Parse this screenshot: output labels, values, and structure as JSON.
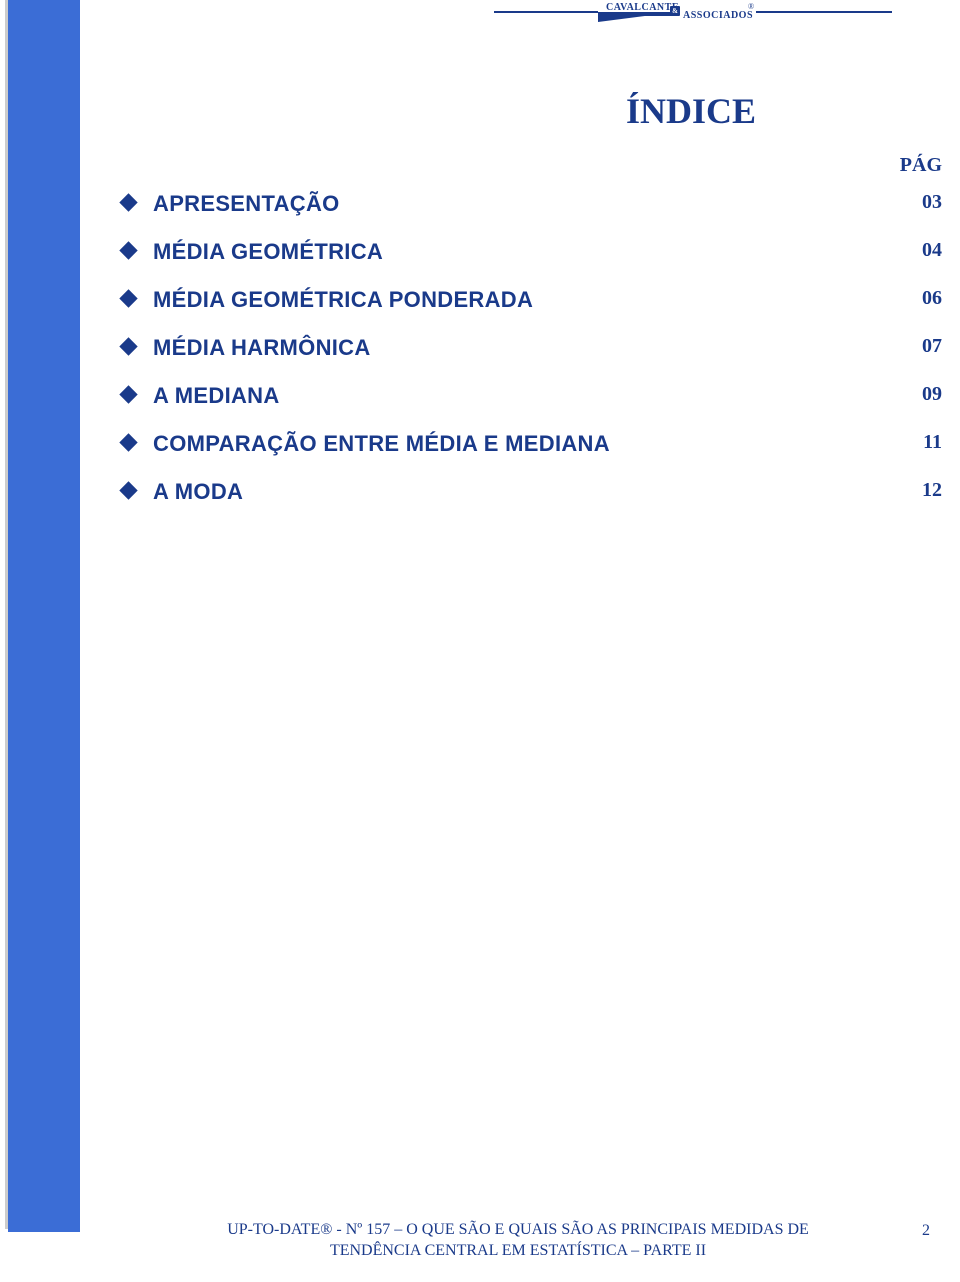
{
  "header": {
    "brand_line1": "CAVALCANTE",
    "brand_amp": "&",
    "brand_line2": "ASSOCIADOS",
    "reg_mark": "®"
  },
  "title": "ÍNDICE",
  "pag_label": "PÁG",
  "toc": [
    {
      "label": "APRESENTAÇÃO",
      "page": "03"
    },
    {
      "label": "MÉDIA GEOMÉTRICA",
      "page": "04"
    },
    {
      "label": "MÉDIA GEOMÉTRICA PONDERADA",
      "page": "06"
    },
    {
      "label": "MÉDIA HARMÔNICA",
      "page": "07"
    },
    {
      "label": "A MEDIANA",
      "page": "09"
    },
    {
      "label": "COMPARAÇÃO ENTRE MÉDIA E MEDIANA",
      "page": "11"
    },
    {
      "label": "A MODA",
      "page": "12"
    }
  ],
  "footer": {
    "line1": "UP-TO-DATE® - Nº 157 – O QUE SÃO E QUAIS SÃO AS PRINCIPAIS MEDIDAS DE",
    "line2": "TENDÊNCIA CENTRAL EM ESTATÍSTICA – PARTE II",
    "page_number": "2"
  },
  "colors": {
    "primary_blue": "#1a3a8a",
    "sidebar_blue": "#3b6dd6",
    "background": "#ffffff",
    "shadow": "#cccccc"
  },
  "typography": {
    "title_fontsize": 36,
    "toc_label_fontsize": 22,
    "toc_page_fontsize": 20,
    "footer_fontsize": 16,
    "logo_fontsize": 10
  }
}
